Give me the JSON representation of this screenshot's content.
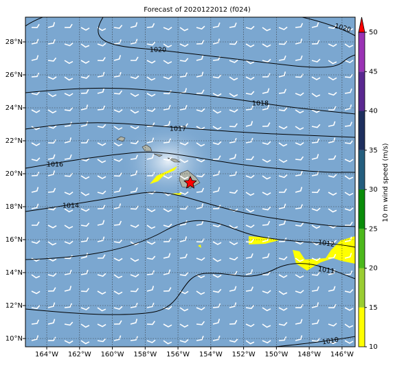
{
  "map": {
    "title": "Forecast of 2020122012 (f024)",
    "lon_range": [
      -165.3,
      -145.2
    ],
    "lat_range": [
      9.5,
      29.5
    ],
    "lon_ticks": [
      {
        "value": -164,
        "label": "164°W"
      },
      {
        "value": -162,
        "label": "162°W"
      },
      {
        "value": -160,
        "label": "160°W"
      },
      {
        "value": -158,
        "label": "158°W"
      },
      {
        "value": -156,
        "label": "156°W"
      },
      {
        "value": -154,
        "label": "154°W"
      },
      {
        "value": -152,
        "label": "152°W"
      },
      {
        "value": -150,
        "label": "150°W"
      },
      {
        "value": -148,
        "label": "148°W"
      },
      {
        "value": -146,
        "label": "146°W"
      }
    ],
    "lat_ticks": [
      {
        "value": 10,
        "label": "10°N"
      },
      {
        "value": 12,
        "label": "12°N"
      },
      {
        "value": 14,
        "label": "14°N"
      },
      {
        "value": 16,
        "label": "16°N"
      },
      {
        "value": 18,
        "label": "18°N"
      },
      {
        "value": 20,
        "label": "20°N"
      },
      {
        "value": 22,
        "label": "22°N"
      },
      {
        "value": 24,
        "label": "24°N"
      },
      {
        "value": 26,
        "label": "26°N"
      },
      {
        "value": 28,
        "label": "28°N"
      }
    ],
    "contour_labels": [
      "1020",
      "1020",
      "1018",
      "1017",
      "1016",
      "1014",
      "1012",
      "1011",
      "1010"
    ],
    "colorbar": {
      "label": "10 m wind speed (m/s)",
      "range": [
        10,
        50
      ],
      "ticks": [
        10,
        15,
        20,
        25,
        30,
        35,
        40,
        45,
        50
      ],
      "colors": [
        "#ffff00",
        "#9acd32",
        "#4cb81c",
        "#0a8c0a",
        "#245e7e",
        "#1e2f5e",
        "#5a2890",
        "#9a32b4"
      ],
      "extend_color": "#ff0000"
    }
  }
}
